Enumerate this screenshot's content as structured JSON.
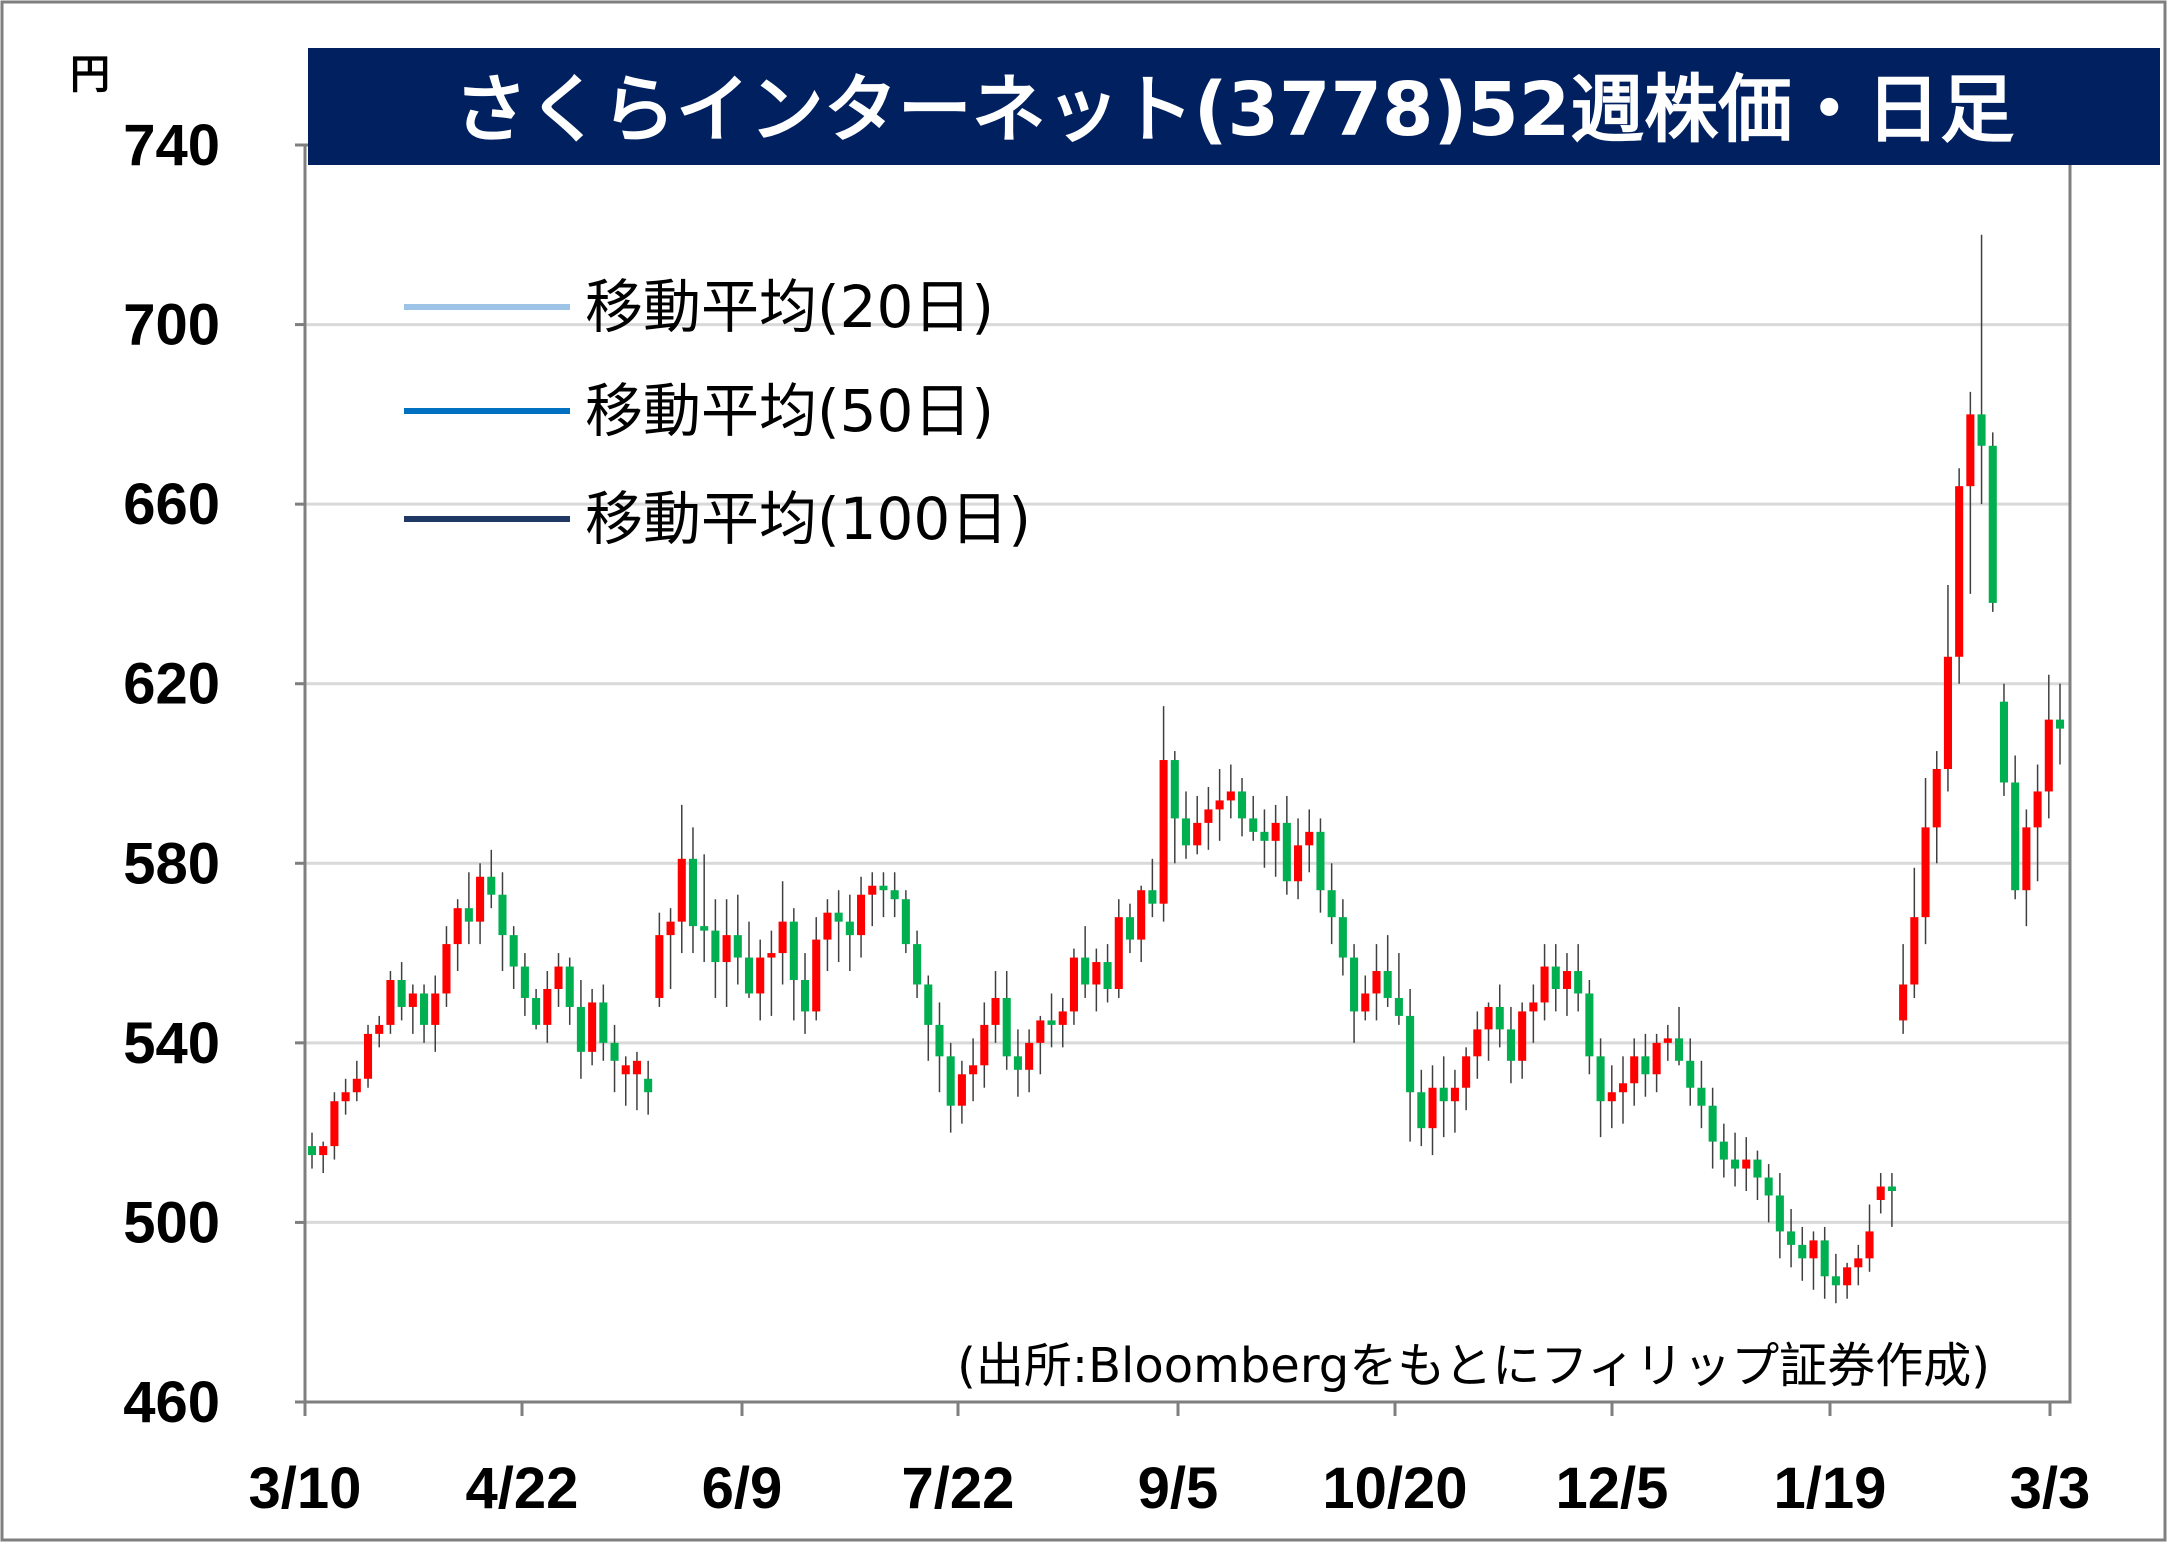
{
  "chart_data": {
    "type": "candlestick",
    "title": "さくらインターネット(3778)52週株価・日足",
    "y_unit": "円",
    "ylim": [
      460,
      740
    ],
    "y_ticks": [
      "740",
      "700",
      "660",
      "620",
      "580",
      "540",
      "500",
      "460"
    ],
    "x_ticks": [
      "3/10",
      "4/22",
      "6/9",
      "7/22",
      "9/5",
      "10/20",
      "12/5",
      "1/19",
      "3/3"
    ],
    "grid": true,
    "source": "(出所:Bloombergをもとにフィリップ証券作成)",
    "legend": [
      {
        "label": "移動平均(20日)",
        "color": "#9dc3e6"
      },
      {
        "label": "移動平均(50日)",
        "color": "#0070c0"
      },
      {
        "label": "移動平均(100日)",
        "color": "#1f3864"
      }
    ],
    "up_color": "#ff0000",
    "down_color": "#00b050",
    "title_bg": "#002060",
    "candles": [
      [
        517,
        520,
        512,
        515
      ],
      [
        515,
        518,
        511,
        517
      ],
      [
        517,
        529,
        514,
        527
      ],
      [
        527,
        532,
        524,
        529
      ],
      [
        529,
        536,
        527,
        532
      ],
      [
        532,
        544,
        530,
        542
      ],
      [
        542,
        546,
        539,
        544
      ],
      [
        544,
        556,
        542,
        554
      ],
      [
        554,
        558,
        545,
        548
      ],
      [
        548,
        553,
        542,
        551
      ],
      [
        551,
        553,
        540,
        544
      ],
      [
        544,
        555,
        538,
        551
      ],
      [
        551,
        566,
        548,
        562
      ],
      [
        562,
        572,
        556,
        570
      ],
      [
        570,
        578,
        562,
        567
      ],
      [
        567,
        580,
        562,
        577
      ],
      [
        577,
        583,
        570,
        573
      ],
      [
        573,
        578,
        556,
        564
      ],
      [
        564,
        566,
        552,
        557
      ],
      [
        557,
        560,
        546,
        550
      ],
      [
        550,
        552,
        543,
        544
      ],
      [
        544,
        556,
        540,
        552
      ],
      [
        552,
        560,
        548,
        557
      ],
      [
        557,
        559,
        544,
        548
      ],
      [
        548,
        554,
        532,
        538
      ],
      [
        538,
        552,
        535,
        549
      ],
      [
        549,
        553,
        536,
        540
      ],
      [
        540,
        544,
        529,
        536
      ],
      [
        533,
        537,
        526,
        535
      ],
      [
        533,
        538,
        525,
        536
      ],
      [
        532,
        536,
        524,
        529
      ],
      [
        550,
        569,
        548,
        564
      ],
      [
        564,
        570,
        552,
        567
      ],
      [
        567,
        593,
        560,
        581
      ],
      [
        581,
        588,
        560,
        566
      ],
      [
        566,
        582,
        558,
        565
      ],
      [
        565,
        572,
        550,
        558
      ],
      [
        558,
        572,
        548,
        564
      ],
      [
        564,
        573,
        553,
        559
      ],
      [
        559,
        567,
        550,
        551
      ],
      [
        551,
        563,
        545,
        559
      ],
      [
        559,
        565,
        546,
        560
      ],
      [
        560,
        576,
        553,
        567
      ],
      [
        567,
        570,
        545,
        554
      ],
      [
        554,
        560,
        542,
        547
      ],
      [
        547,
        568,
        545,
        563
      ],
      [
        563,
        572,
        556,
        569
      ],
      [
        569,
        574,
        558,
        567
      ],
      [
        567,
        573,
        556,
        564
      ],
      [
        564,
        577,
        559,
        573
      ],
      [
        573,
        578,
        566,
        575
      ],
      [
        575,
        578,
        568,
        574
      ],
      [
        574,
        578,
        568,
        572
      ],
      [
        572,
        574,
        560,
        562
      ],
      [
        562,
        565,
        550,
        553
      ],
      [
        553,
        555,
        536,
        544
      ],
      [
        544,
        549,
        529,
        537
      ],
      [
        537,
        540,
        520,
        526
      ],
      [
        526,
        536,
        522,
        533
      ],
      [
        533,
        541,
        527,
        535
      ],
      [
        535,
        549,
        530,
        544
      ],
      [
        544,
        556,
        540,
        550
      ],
      [
        550,
        556,
        534,
        537
      ],
      [
        537,
        543,
        528,
        534
      ],
      [
        534,
        543,
        529,
        540
      ],
      [
        540,
        546,
        533,
        545
      ],
      [
        545,
        551,
        539,
        544
      ],
      [
        544,
        550,
        539,
        547
      ],
      [
        547,
        561,
        544,
        559
      ],
      [
        559,
        566,
        550,
        553
      ],
      [
        553,
        561,
        547,
        558
      ],
      [
        558,
        562,
        549,
        552
      ],
      [
        552,
        572,
        550,
        568
      ],
      [
        568,
        571,
        560,
        563
      ],
      [
        563,
        575,
        558,
        574
      ],
      [
        574,
        581,
        568,
        571
      ],
      [
        571,
        615,
        567,
        603
      ],
      [
        603,
        605,
        580,
        590
      ],
      [
        590,
        596,
        581,
        584
      ],
      [
        584,
        595,
        582,
        589
      ],
      [
        589,
        597,
        583,
        592
      ],
      [
        592,
        601,
        585,
        594
      ],
      [
        594,
        602,
        590,
        596
      ],
      [
        596,
        599,
        586,
        590
      ],
      [
        590,
        595,
        585,
        587
      ],
      [
        587,
        592,
        579,
        585
      ],
      [
        585,
        593,
        577,
        589
      ],
      [
        589,
        595,
        573,
        576
      ],
      [
        576,
        590,
        572,
        584
      ],
      [
        584,
        592,
        578,
        587
      ],
      [
        587,
        590,
        569,
        574
      ],
      [
        574,
        580,
        562,
        568
      ],
      [
        568,
        572,
        555,
        559
      ],
      [
        559,
        562,
        540,
        547
      ],
      [
        547,
        555,
        545,
        551
      ],
      [
        551,
        562,
        545,
        556
      ],
      [
        556,
        564,
        548,
        550
      ],
      [
        550,
        560,
        544,
        546
      ],
      [
        546,
        552,
        518,
        529
      ],
      [
        529,
        534,
        517,
        521
      ],
      [
        521,
        535,
        515,
        530
      ],
      [
        530,
        537,
        519,
        527
      ],
      [
        527,
        534,
        520,
        530
      ],
      [
        530,
        539,
        525,
        537
      ],
      [
        537,
        547,
        532,
        543
      ],
      [
        543,
        549,
        536,
        548
      ],
      [
        548,
        553,
        539,
        543
      ],
      [
        543,
        548,
        531,
        536
      ],
      [
        536,
        549,
        532,
        547
      ],
      [
        547,
        553,
        540,
        549
      ],
      [
        549,
        562,
        545,
        557
      ],
      [
        557,
        562,
        547,
        552
      ],
      [
        552,
        560,
        546,
        556
      ],
      [
        556,
        562,
        547,
        551
      ],
      [
        551,
        554,
        533,
        537
      ],
      [
        537,
        541,
        519,
        527
      ],
      [
        527,
        535,
        521,
        529
      ],
      [
        529,
        537,
        522,
        531
      ],
      [
        531,
        541,
        526,
        537
      ],
      [
        537,
        542,
        528,
        533
      ],
      [
        533,
        542,
        529,
        540
      ],
      [
        540,
        544,
        536,
        541
      ],
      [
        541,
        548,
        535,
        536
      ],
      [
        536,
        541,
        526,
        530
      ],
      [
        530,
        536,
        521,
        526
      ],
      [
        526,
        530,
        512,
        518
      ],
      [
        518,
        522,
        510,
        514
      ],
      [
        514,
        520,
        508,
        512
      ],
      [
        512,
        519,
        507,
        514
      ],
      [
        514,
        516,
        505,
        510
      ],
      [
        510,
        513,
        500,
        506
      ],
      [
        506,
        511,
        492,
        498
      ],
      [
        498,
        503,
        490,
        495
      ],
      [
        495,
        499,
        487,
        492
      ],
      [
        492,
        498,
        485,
        496
      ],
      [
        496,
        499,
        483,
        488
      ],
      [
        488,
        493,
        482,
        486
      ],
      [
        486,
        491,
        483,
        490
      ],
      [
        490,
        495,
        486,
        492
      ],
      [
        492,
        504,
        489,
        498
      ],
      [
        505,
        511,
        502,
        508
      ],
      [
        508,
        511,
        499,
        507
      ],
      [
        545,
        562,
        542,
        553
      ],
      [
        553,
        579,
        550,
        568
      ],
      [
        568,
        599,
        562,
        588
      ],
      [
        588,
        605,
        580,
        601
      ],
      [
        601,
        642,
        596,
        626
      ],
      [
        626,
        668,
        620,
        664
      ],
      [
        664,
        685,
        640,
        680
      ],
      [
        680,
        720,
        660,
        673
      ],
      [
        673,
        676,
        636,
        638
      ],
      [
        616,
        620,
        595,
        598
      ],
      [
        598,
        604,
        572,
        574
      ],
      [
        574,
        592,
        566,
        588
      ],
      [
        588,
        602,
        576,
        596
      ],
      [
        596,
        622,
        590,
        612
      ],
      [
        612,
        620,
        602,
        610
      ]
    ]
  }
}
